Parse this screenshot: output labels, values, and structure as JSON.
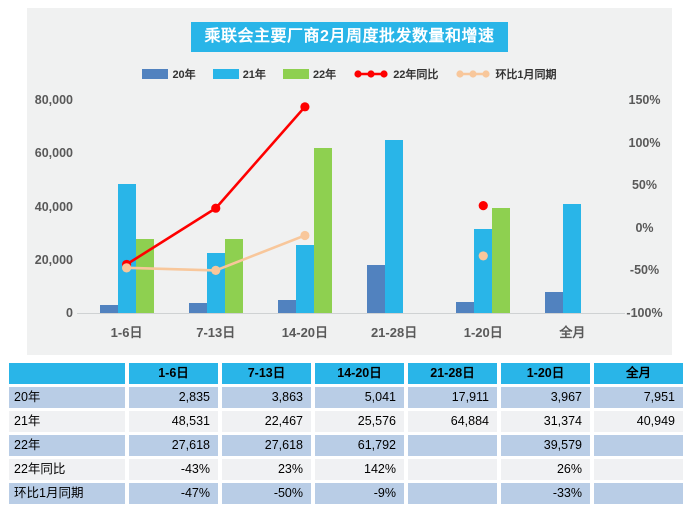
{
  "title": "乘联会主要厂商2月周度批发数量和增速",
  "colors": {
    "accent_cyan": "#29b5e8",
    "bar_2020": "#5182bf",
    "bar_2021": "#29b5e8",
    "bar_2022": "#8ed050",
    "line_yoy": "#fe0000",
    "line_mom": "#f8c79b",
    "panel_bg": "#f0f1f1",
    "grid_line": "#cfd2d3",
    "axis_text": "#595959",
    "table_row_blue": "#b9cde6",
    "table_row_gray": "#f0f1f3"
  },
  "chart_data": {
    "type": "bar+line combo",
    "title": "乘联会主要厂商2月周度批发数量和增速",
    "categories": [
      "1-6日",
      "7-13日",
      "14-20日",
      "21-28日",
      "1-20日",
      "全月"
    ],
    "bar_series": [
      {
        "name": "20年",
        "color_key": "bar_2020",
        "axis": "left",
        "values": [
          2835,
          3863,
          5041,
          17911,
          3967,
          7951
        ]
      },
      {
        "name": "21年",
        "color_key": "bar_2021",
        "axis": "left",
        "values": [
          48531,
          22467,
          25576,
          64884,
          31374,
          40949
        ]
      },
      {
        "name": "22年",
        "color_key": "bar_2022",
        "axis": "left",
        "values": [
          27618,
          27618,
          61792,
          null,
          39579,
          null
        ]
      }
    ],
    "line_series": [
      {
        "name": "22年同比",
        "color_key": "line_yoy",
        "axis": "right",
        "values_pct": [
          -43,
          23,
          142,
          null,
          26,
          null
        ]
      },
      {
        "name": "环比1月同期",
        "color_key": "line_mom",
        "axis": "right",
        "values_pct": [
          -47,
          -50,
          -9,
          null,
          -33,
          null
        ]
      }
    ],
    "left_axis": {
      "min": 0,
      "max": 80000,
      "ticks": [
        "80,000",
        "60,000",
        "40,000",
        "20,000",
        "0"
      ]
    },
    "right_axis": {
      "min": -100,
      "max": 150,
      "ticks": [
        "150%",
        "100%",
        "50%",
        "0%",
        "-50%",
        "-100%"
      ]
    },
    "legend_position": "top",
    "grid": false
  },
  "table": {
    "header": [
      "",
      "1-6日",
      "7-13日",
      "14-20日",
      "21-28日",
      "1-20日",
      "全月"
    ],
    "rows": [
      {
        "label": "20年",
        "cells": [
          "2,835",
          "3,863",
          "5,041",
          "17,911",
          "3,967",
          "7,951"
        ]
      },
      {
        "label": "21年",
        "cells": [
          "48,531",
          "22,467",
          "25,576",
          "64,884",
          "31,374",
          "40,949"
        ]
      },
      {
        "label": "22年",
        "cells": [
          "27,618",
          "27,618",
          "61,792",
          "",
          "39,579",
          ""
        ]
      },
      {
        "label": "22年同比",
        "cells": [
          "-43%",
          "23%",
          "142%",
          "",
          "26%",
          ""
        ]
      },
      {
        "label": "环比1月同期",
        "cells": [
          "-47%",
          "-50%",
          "-9%",
          "",
          "-33%",
          ""
        ]
      }
    ]
  }
}
